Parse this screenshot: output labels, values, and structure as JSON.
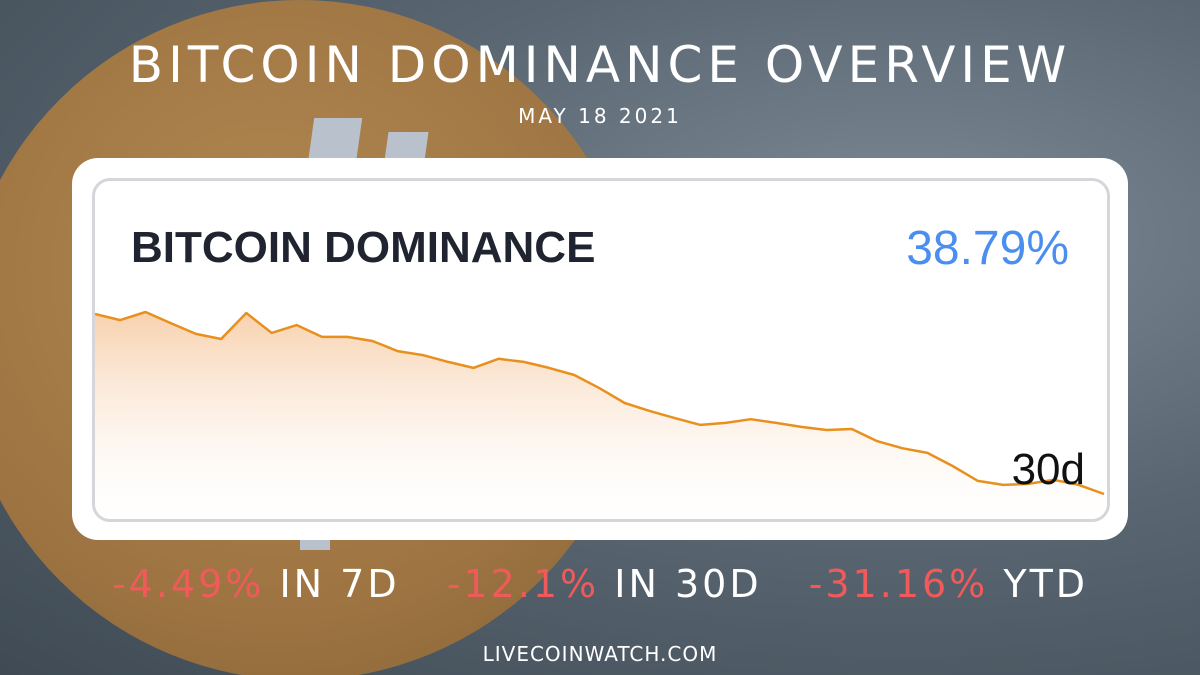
{
  "header": {
    "title": "BITCOIN DOMINANCE OVERVIEW",
    "subtitle": "MAY 18 2021"
  },
  "card": {
    "title": "BITCOIN DOMINANCE",
    "value": "38.79%",
    "period": "30d"
  },
  "chart_data": {
    "type": "line",
    "color": "#e8901e",
    "values": [
      44.13,
      43.95,
      44.19,
      43.86,
      43.54,
      43.39,
      44.16,
      43.57,
      43.8,
      43.45,
      43.45,
      43.33,
      43.03,
      42.91,
      42.71,
      42.53,
      42.8,
      42.71,
      42.53,
      42.32,
      41.93,
      41.49,
      41.25,
      41.04,
      40.84,
      40.9,
      41.01,
      40.9,
      40.78,
      40.69,
      40.72,
      40.36,
      40.15,
      40.01,
      39.62,
      39.18,
      39.06,
      39.09,
      39.21,
      39.06,
      38.79
    ]
  },
  "stats": [
    {
      "change": "-4.49%",
      "label": "IN 7D"
    },
    {
      "change": "-12.1%",
      "label": "IN 30D"
    },
    {
      "change": "-31.16%",
      "label": "YTD"
    }
  ],
  "footer": "LIVECOINWATCH.COM"
}
